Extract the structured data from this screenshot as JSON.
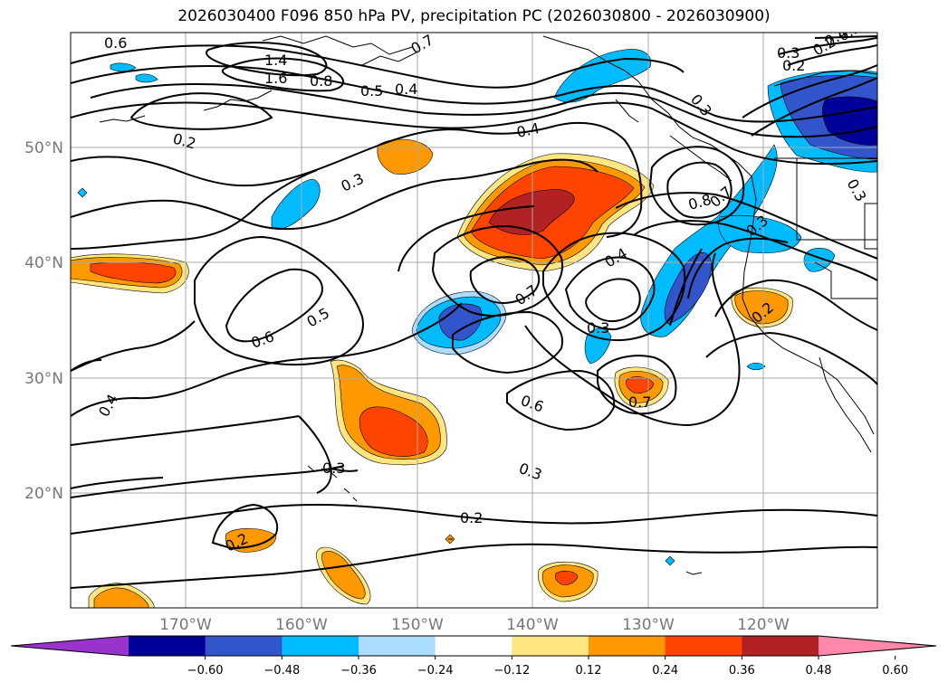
{
  "title": "2026030400 F096 850 hPa PV, precipitation PC (2026030800 - 2026030900)",
  "lat_labels": [
    "50°N",
    "40°N",
    "30°N",
    "20°N"
  ],
  "lon_labels": [
    "170°W",
    "160°W",
    "150°W",
    "140°W",
    "130°W",
    "120°W"
  ],
  "contour_labels": [
    "0.6",
    "1.4",
    "1.6",
    "0.8",
    "0.7",
    "0.5",
    "0.4",
    "0.3",
    "0.2",
    "0.2",
    "0.4",
    "0.3",
    "0.8",
    "0.7",
    "0.3",
    "0.4",
    "0.6",
    "0.5",
    "0.7",
    "0.3",
    "0.4",
    "0.6",
    "0.7",
    "0.3",
    "0.3",
    "0.2",
    "0.2",
    "0.2",
    "0.3",
    "0.2",
    "0.3",
    "0.4",
    "0.5"
  ],
  "colorbar": {
    "tick_labels": [
      "−0.60",
      "−0.48",
      "−0.36",
      "−0.24",
      "−0.12",
      "0.12",
      "0.24",
      "0.36",
      "0.48",
      "0.60"
    ],
    "colors": [
      "#9933cc",
      "#000099",
      "#3355cc",
      "#00bbff",
      "#aaddff",
      "#ffffff",
      "#ffe680",
      "#ff9900",
      "#ff4400",
      "#b22222",
      "#ff88aa"
    ]
  },
  "colors": {
    "grid": "#aaaaaa",
    "coast": "#000000"
  }
}
